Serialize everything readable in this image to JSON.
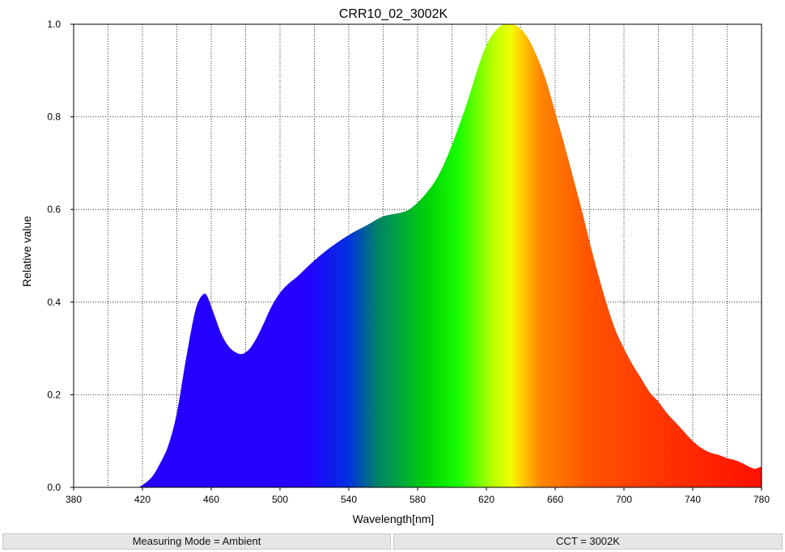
{
  "chart_data": {
    "type": "area",
    "title": "CRR10_02_3002K",
    "xlabel": "Wavelength[nm]",
    "ylabel": "Relative value",
    "xlim": [
      380,
      780
    ],
    "ylim": [
      0,
      1.0
    ],
    "x_ticks": [
      "380",
      "420",
      "460",
      "500",
      "540",
      "580",
      "620",
      "660",
      "700",
      "740",
      "780"
    ],
    "y_ticks": [
      "0.0",
      "0.2",
      "0.4",
      "0.6",
      "0.8",
      "1.0"
    ],
    "grid": true,
    "fill": "spectral-gradient",
    "x": [
      418,
      425,
      430,
      435,
      440,
      445,
      450,
      453,
      456,
      458,
      462,
      466,
      470,
      474,
      478,
      482,
      486,
      490,
      495,
      500,
      505,
      510,
      520,
      530,
      540,
      550,
      560,
      570,
      575,
      580,
      585,
      590,
      595,
      600,
      605,
      610,
      615,
      620,
      625,
      630,
      635,
      640,
      645,
      650,
      655,
      660,
      665,
      670,
      675,
      680,
      685,
      690,
      695,
      700,
      705,
      710,
      715,
      720,
      725,
      730,
      735,
      740,
      745,
      750,
      755,
      760,
      765,
      770,
      773,
      776,
      778,
      780
    ],
    "y": [
      0.0,
      0.02,
      0.05,
      0.09,
      0.16,
      0.27,
      0.37,
      0.405,
      0.418,
      0.41,
      0.37,
      0.33,
      0.305,
      0.292,
      0.288,
      0.298,
      0.32,
      0.35,
      0.39,
      0.42,
      0.44,
      0.455,
      0.49,
      0.52,
      0.545,
      0.565,
      0.585,
      0.593,
      0.6,
      0.615,
      0.635,
      0.66,
      0.695,
      0.74,
      0.79,
      0.845,
      0.905,
      0.955,
      0.985,
      1.0,
      1.0,
      0.99,
      0.965,
      0.925,
      0.875,
      0.81,
      0.745,
      0.675,
      0.605,
      0.53,
      0.46,
      0.395,
      0.34,
      0.3,
      0.265,
      0.235,
      0.205,
      0.185,
      0.16,
      0.14,
      0.12,
      0.1,
      0.085,
      0.075,
      0.07,
      0.063,
      0.058,
      0.05,
      0.044,
      0.04,
      0.042,
      0.045
    ]
  },
  "status": {
    "measuring_mode": "Measuring Mode = Ambient",
    "cct": "CCT = 3002K"
  }
}
